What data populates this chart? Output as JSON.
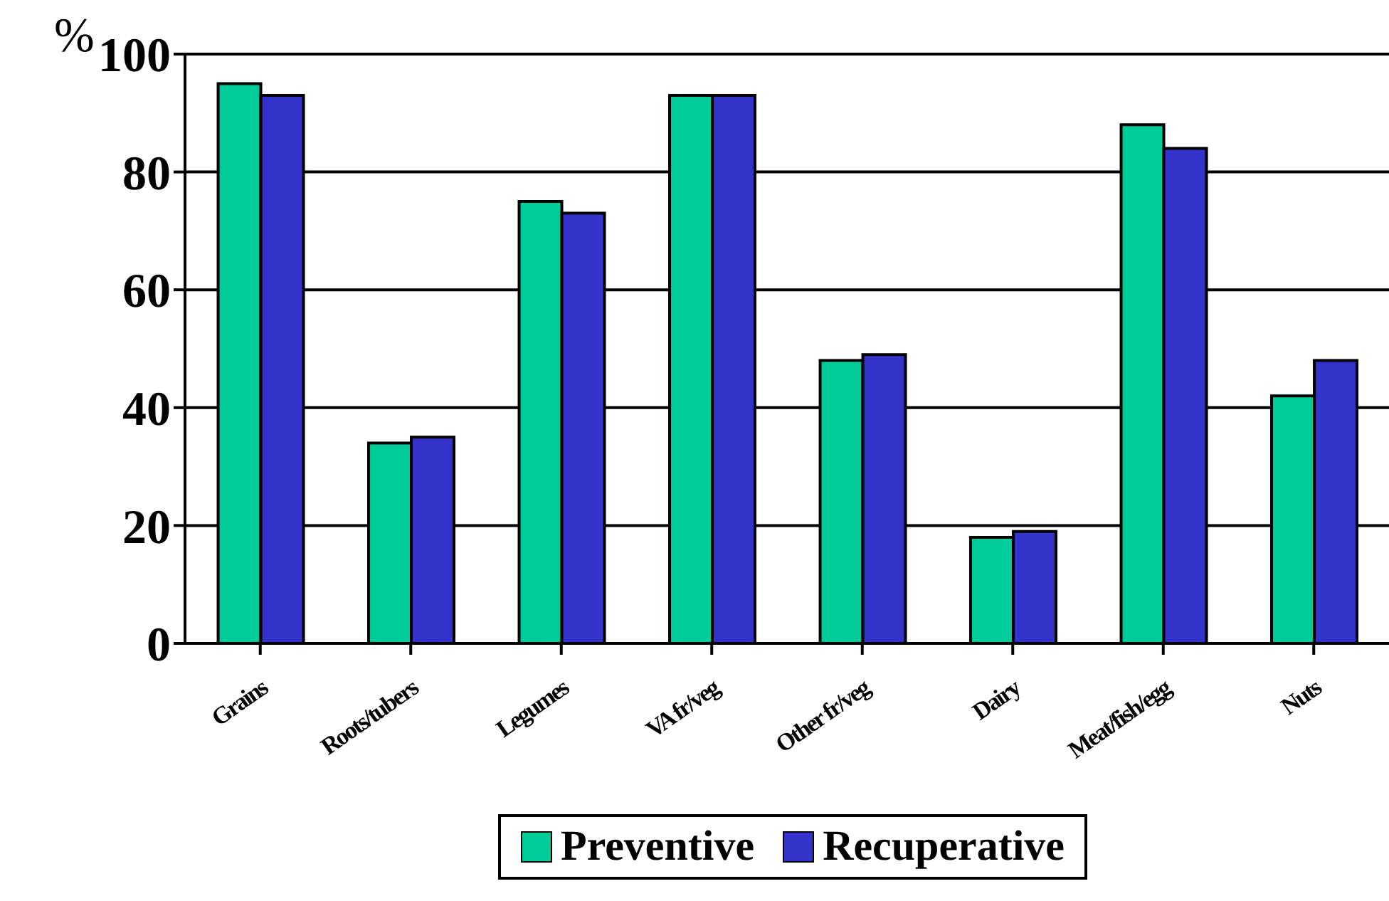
{
  "chart_data": {
    "type": "bar",
    "ylabel": "%",
    "categories": [
      "Grains",
      "Roots/tubers",
      "Legumes",
      "VA fr/veg",
      "Other fr/veg",
      "Dairy",
      "Meat/fish/egg",
      "Nuts"
    ],
    "series": [
      {
        "name": "Preventive",
        "color": "#00cc99",
        "values": [
          95,
          34,
          75,
          93,
          48,
          18,
          88,
          42
        ]
      },
      {
        "name": "Recuperative",
        "color": "#3333cc",
        "values": [
          93,
          35,
          73,
          93,
          49,
          19,
          84,
          48
        ]
      }
    ],
    "ylim": [
      0,
      100
    ],
    "yticks": [
      0,
      20,
      40,
      60,
      80,
      100
    ],
    "grid": "y",
    "legend": "bottom"
  }
}
